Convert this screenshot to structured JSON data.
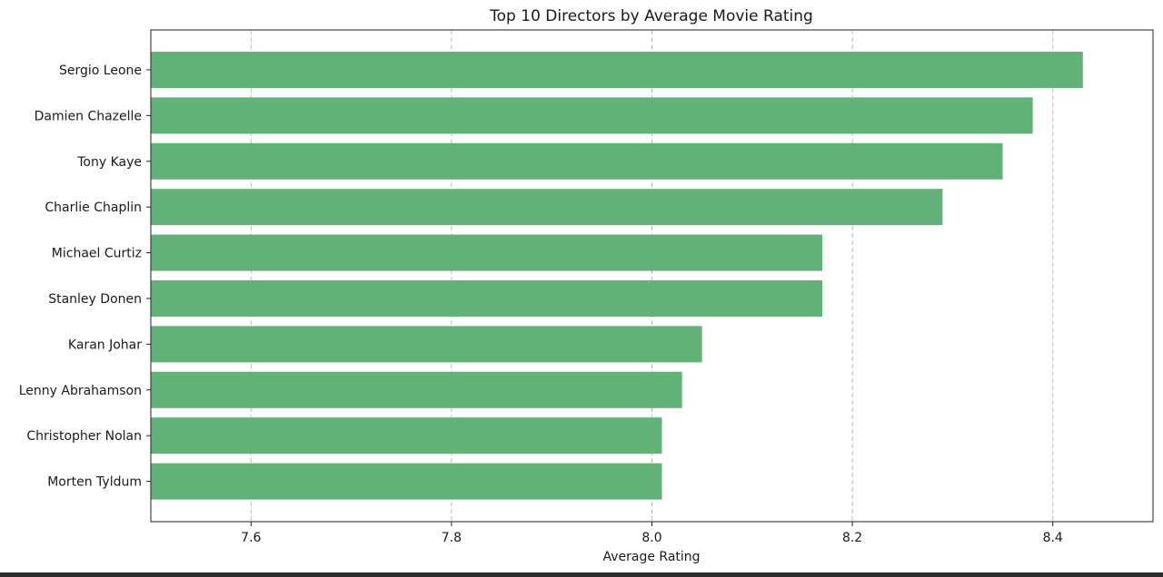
{
  "chart_data": {
    "type": "bar",
    "orientation": "horizontal",
    "title": "Top 10 Directors by Average Movie Rating",
    "xlabel": "Average Rating",
    "ylabel": "",
    "categories": [
      "Sergio Leone",
      "Damien Chazelle",
      "Tony Kaye",
      "Charlie Chaplin",
      "Michael Curtiz",
      "Stanley Donen",
      "Karan Johar",
      "Lenny Abrahamson",
      "Christopher Nolan",
      "Morten Tyldum"
    ],
    "values": [
      8.43,
      8.38,
      8.35,
      8.29,
      8.17,
      8.17,
      8.05,
      8.03,
      8.01,
      8.01
    ],
    "xlim": [
      7.5,
      8.5
    ],
    "xticks": [
      "7.6",
      "7.8",
      "8.0",
      "8.2",
      "8.4"
    ],
    "grid": "x-dashed",
    "bar_color": "#62b178",
    "legend": "none"
  }
}
